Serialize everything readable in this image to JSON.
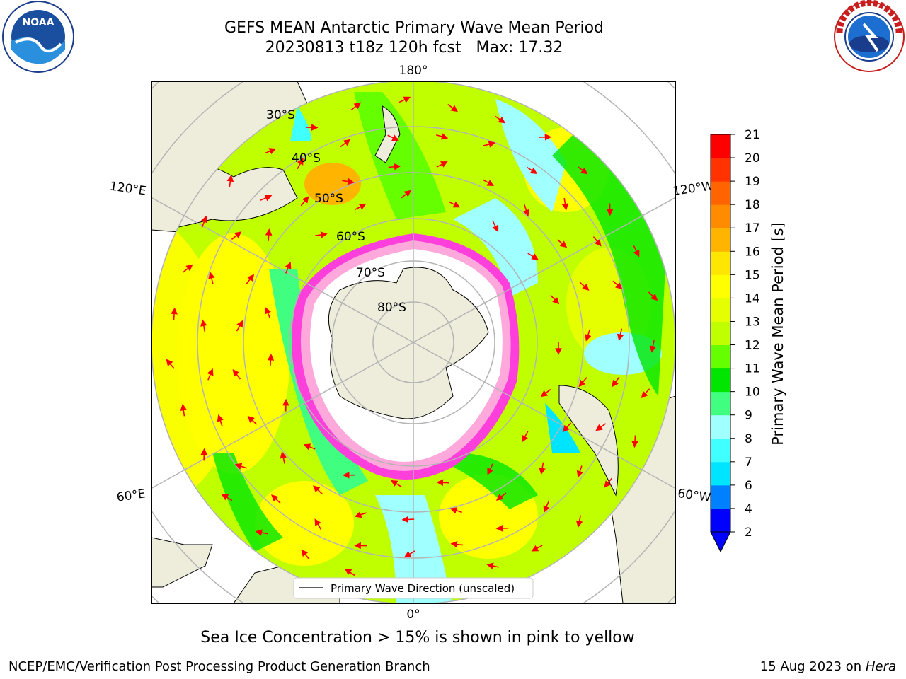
{
  "header": {
    "title": "GEFS MEAN Antarctic Primary Wave Mean Period",
    "subtitle": "20230813 t18z 120h fcst   Max: 17.32"
  },
  "map": {
    "longitude_labels": [
      "180°",
      "120°E",
      "120°W",
      "60°E",
      "60°W",
      "0°"
    ],
    "latitude_labels": [
      "30°S",
      "40°S",
      "50°S",
      "60°S",
      "70°S",
      "80°S"
    ],
    "legend_label": "Primary Wave Direction (unscaled)",
    "colors": {
      "land": "#eeeddc",
      "ice_free_pole": "#ffffff",
      "sea_ice_edge": "#ff3fdc",
      "arrow": "#ff0000",
      "grid": "#b4b4b4"
    }
  },
  "colorbar": {
    "label": "Primary Wave Mean Period [s]",
    "ticks": [
      "2",
      "4",
      "6",
      "7",
      "8",
      "9",
      "10",
      "11",
      "12",
      "13",
      "14",
      "15",
      "16",
      "17",
      "18",
      "19",
      "20",
      "21"
    ],
    "colors": [
      "#0000ff",
      "#0080ff",
      "#00e5ff",
      "#40ffff",
      "#a0ffff",
      "#40ff80",
      "#00e600",
      "#66ff00",
      "#c0ff00",
      "#e6ff00",
      "#ffff00",
      "#ffe600",
      "#ffb400",
      "#ff8c00",
      "#ff6400",
      "#ff3200",
      "#ff0000"
    ],
    "extend_color": "#0000ff"
  },
  "footer": {
    "caption": "Sea Ice Concentration > 15% is shown in pink to yellow",
    "credit": "NCEP/EMC/Verification Post Processing Product Generation Branch",
    "date": "15 Aug 2023 on",
    "machine": "Hera"
  },
  "logos": {
    "noaa_text": "NOAA",
    "nws_text": "NATIONAL WEATHER SERVICE"
  }
}
